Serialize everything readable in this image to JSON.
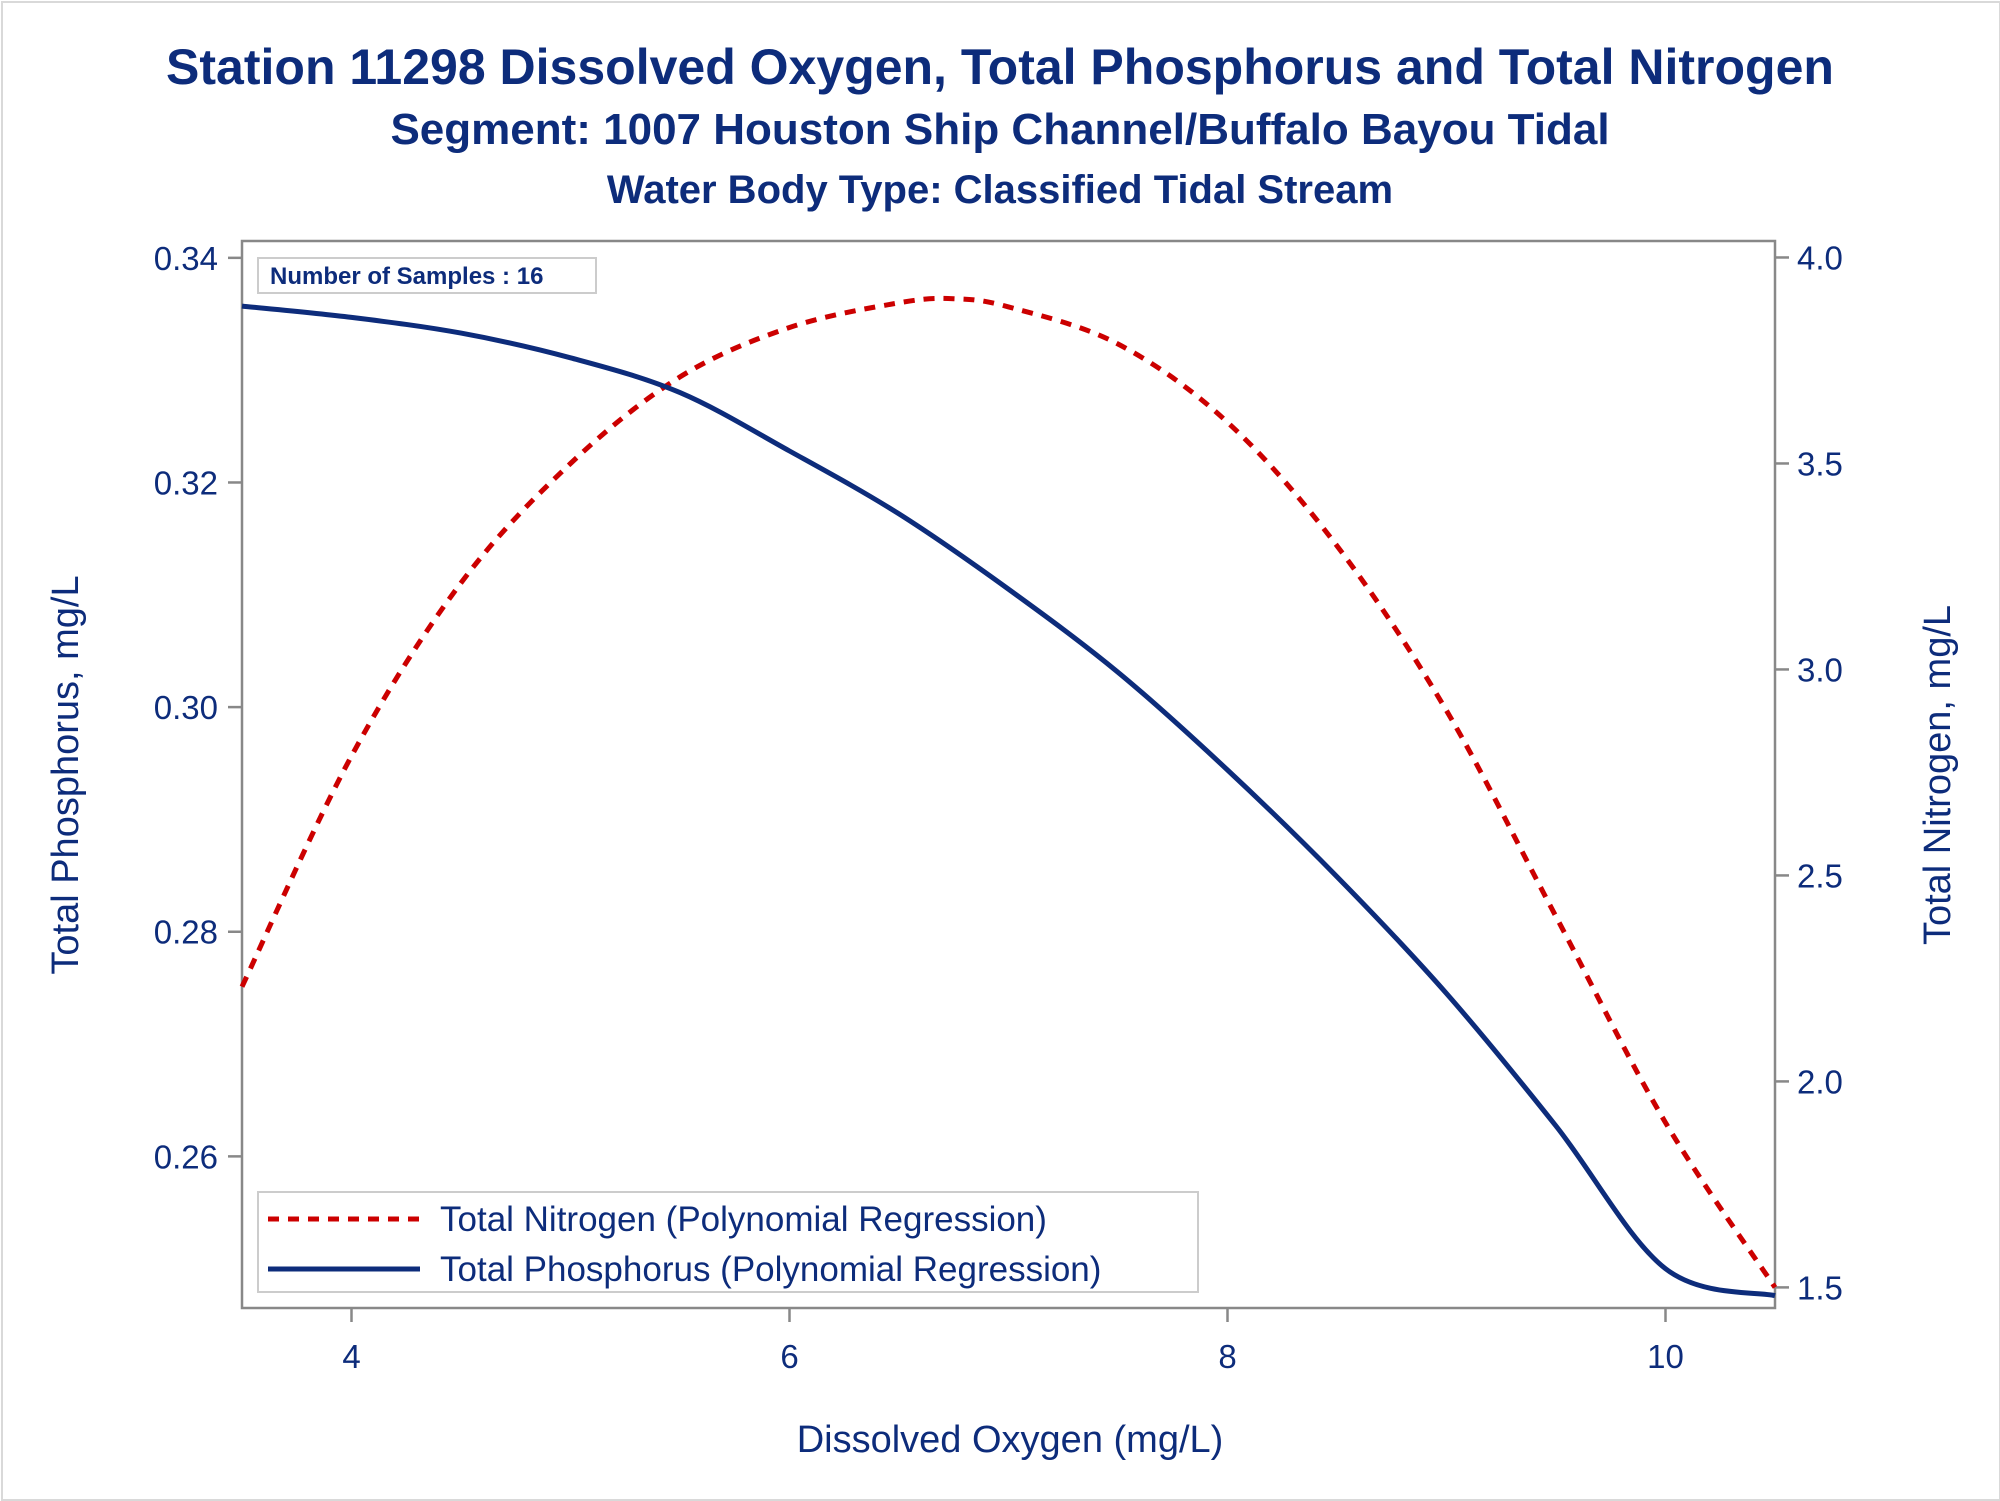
{
  "title": {
    "line1": "Station 11298  Dissolved Oxygen, Total Phosphorus and Total Nitrogen",
    "line2": "Segment: 1007  Houston Ship Channel/Buffalo Bayou Tidal",
    "line3": "Water Body Type: Classified Tidal Stream"
  },
  "inset_label": "Number of Samples : 16",
  "colors": {
    "text": "#0d2c7b",
    "phosphorus": "#0d2c7b",
    "nitrogen": "#cc0000",
    "axis": "#888888"
  },
  "chart_data": {
    "type": "line",
    "xlabel": "Dissolved Oxygen (mg/L)",
    "ylabel": "Total Phosphorus, mg/L",
    "y2label": "Total Nitrogen, mg/L",
    "xlim": [
      3.5,
      10.5
    ],
    "ylim": [
      0.2465,
      0.3415
    ],
    "y2lim": [
      1.45,
      4.04
    ],
    "xticks": [
      4,
      6,
      8,
      10
    ],
    "xtick_labels": [
      "4",
      "6",
      "8",
      "10"
    ],
    "yticks": [
      0.26,
      0.28,
      0.3,
      0.32,
      0.34
    ],
    "ytick_labels": [
      "0.26",
      "0.28",
      "0.30",
      "0.32",
      "0.34"
    ],
    "y2ticks": [
      1.5,
      2.0,
      2.5,
      3.0,
      3.5,
      4.0
    ],
    "y2tick_labels": [
      "1.5",
      "2.0",
      "2.5",
      "3.0",
      "3.5",
      "4.0"
    ],
    "grid": false,
    "legend_position": "bottom-left",
    "series": [
      {
        "name": "Total Nitrogen (Polynomial Regression)",
        "axis": "right",
        "style": "dashed",
        "x": [
          3.5,
          4.0,
          4.5,
          5.0,
          5.5,
          6.0,
          6.5,
          6.75,
          7.0,
          7.5,
          8.0,
          8.5,
          9.0,
          9.5,
          10.0,
          10.5
        ],
        "y": [
          2.23,
          2.79,
          3.21,
          3.5,
          3.71,
          3.83,
          3.89,
          3.9,
          3.88,
          3.79,
          3.6,
          3.3,
          2.9,
          2.4,
          1.9,
          1.5
        ]
      },
      {
        "name": "Total Phosphorus (Polynomial Regression)",
        "axis": "left",
        "style": "solid",
        "x": [
          3.5,
          4.0,
          4.5,
          5.0,
          5.5,
          6.0,
          6.5,
          7.0,
          7.5,
          8.0,
          8.5,
          9.0,
          9.5,
          10.0,
          10.5
        ],
        "y": [
          0.3357,
          0.3347,
          0.3333,
          0.3311,
          0.328,
          0.3228,
          0.3172,
          0.3105,
          0.3031,
          0.2944,
          0.2849,
          0.2745,
          0.2627,
          0.25,
          0.2476
        ]
      }
    ]
  }
}
